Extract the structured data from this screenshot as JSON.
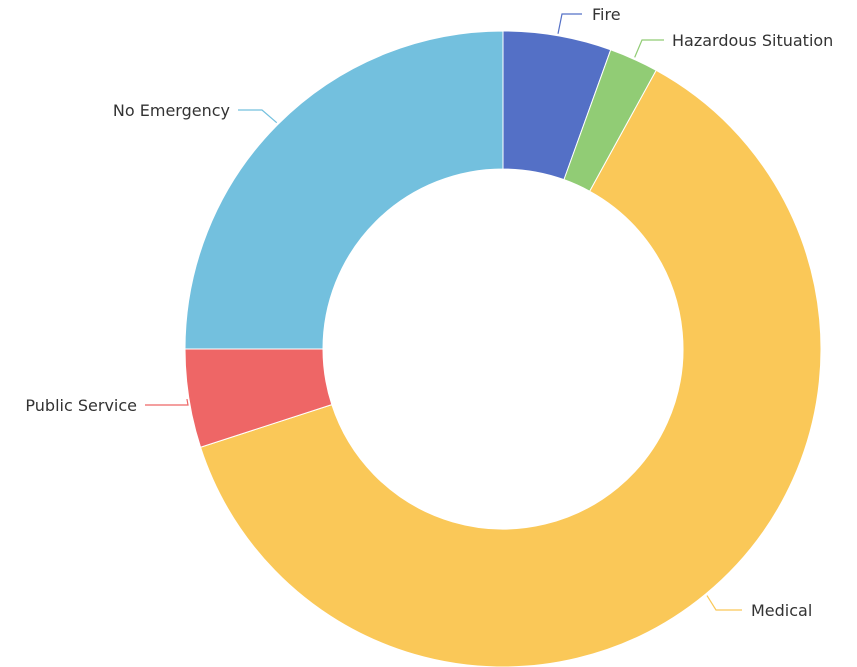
{
  "chart_data": {
    "type": "pie",
    "variant": "donut",
    "legend": "none",
    "slices": [
      {
        "label": "Fire",
        "value": 5.5,
        "color": "#5470c6"
      },
      {
        "label": "Hazardous Situation",
        "value": 2.5,
        "color": "#91cc75"
      },
      {
        "label": "Medical",
        "value": 62,
        "color": "#fac858"
      },
      {
        "label": "Public Service",
        "value": 5,
        "color": "#ee6666"
      },
      {
        "label": "No Emergency",
        "value": 25,
        "color": "#73c0de"
      }
    ]
  }
}
